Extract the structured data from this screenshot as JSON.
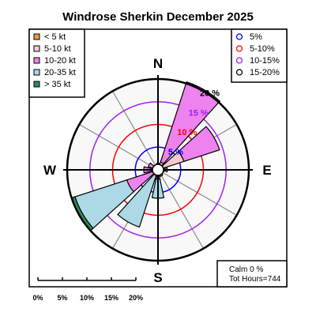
{
  "chart_data": {
    "type": "windrose",
    "title": "Windrose  Sherkin December 2025",
    "compass": {
      "n": "N",
      "e": "E",
      "s": "S",
      "w": "W"
    },
    "speed_bins": [
      {
        "label": "< 5  kt",
        "color": "#e8a040"
      },
      {
        "label": "5-10 kt",
        "color": "#f8c8cc"
      },
      {
        "label": "10-20 kt",
        "color": "#ee82ee"
      },
      {
        "label": "20-35 kt",
        "color": "#add8e6"
      },
      {
        "label": "> 35 kt",
        "color": "#2e8b57"
      }
    ],
    "rings": [
      {
        "label": "5 %",
        "legend": "5%",
        "value": 5,
        "color": "#0000ff"
      },
      {
        "label": "10 %",
        "legend": "5-10%",
        "value": 10,
        "color": "#ff0000"
      },
      {
        "label": "15 %",
        "legend": "10-15%",
        "value": 15,
        "color": "#a020f0"
      },
      {
        "label": "20 %",
        "legend": "15-20%",
        "value": 20,
        "color": "#000000"
      }
    ],
    "directions": [
      0,
      30,
      60,
      90,
      120,
      150,
      180,
      210,
      240,
      270,
      300,
      330
    ],
    "frequencies": [
      [
        0.6,
        0.6,
        0.0,
        0.0,
        0.0
      ],
      [
        0.8,
        1.0,
        18.3,
        0.0,
        0.0
      ],
      [
        0.7,
        5.3,
        8.0,
        0.0,
        0.0
      ],
      [
        0.5,
        1.3,
        0.0,
        0.0,
        0.0
      ],
      [
        0.4,
        0.6,
        0.0,
        0.0,
        0.0
      ],
      [
        0.5,
        0.8,
        0.0,
        0.0,
        0.0
      ],
      [
        0.5,
        1.5,
        0.0,
        4.0,
        0.0
      ],
      [
        0.5,
        0.8,
        0.0,
        11.7,
        0.0
      ],
      [
        0.4,
        0.8,
        6.0,
        12.0,
        0.5
      ],
      [
        0.4,
        0.5,
        2.0,
        0.0,
        0.0
      ],
      [
        0.4,
        0.8,
        0.8,
        0.0,
        0.0
      ],
      [
        0.4,
        0.6,
        0.0,
        0.0,
        0.0
      ]
    ],
    "scale_labels": [
      "0%",
      "5%",
      "10%",
      "15%",
      "20%"
    ],
    "calm_label": "Calm 0 %",
    "hours_label": "Tot Hours=744"
  }
}
